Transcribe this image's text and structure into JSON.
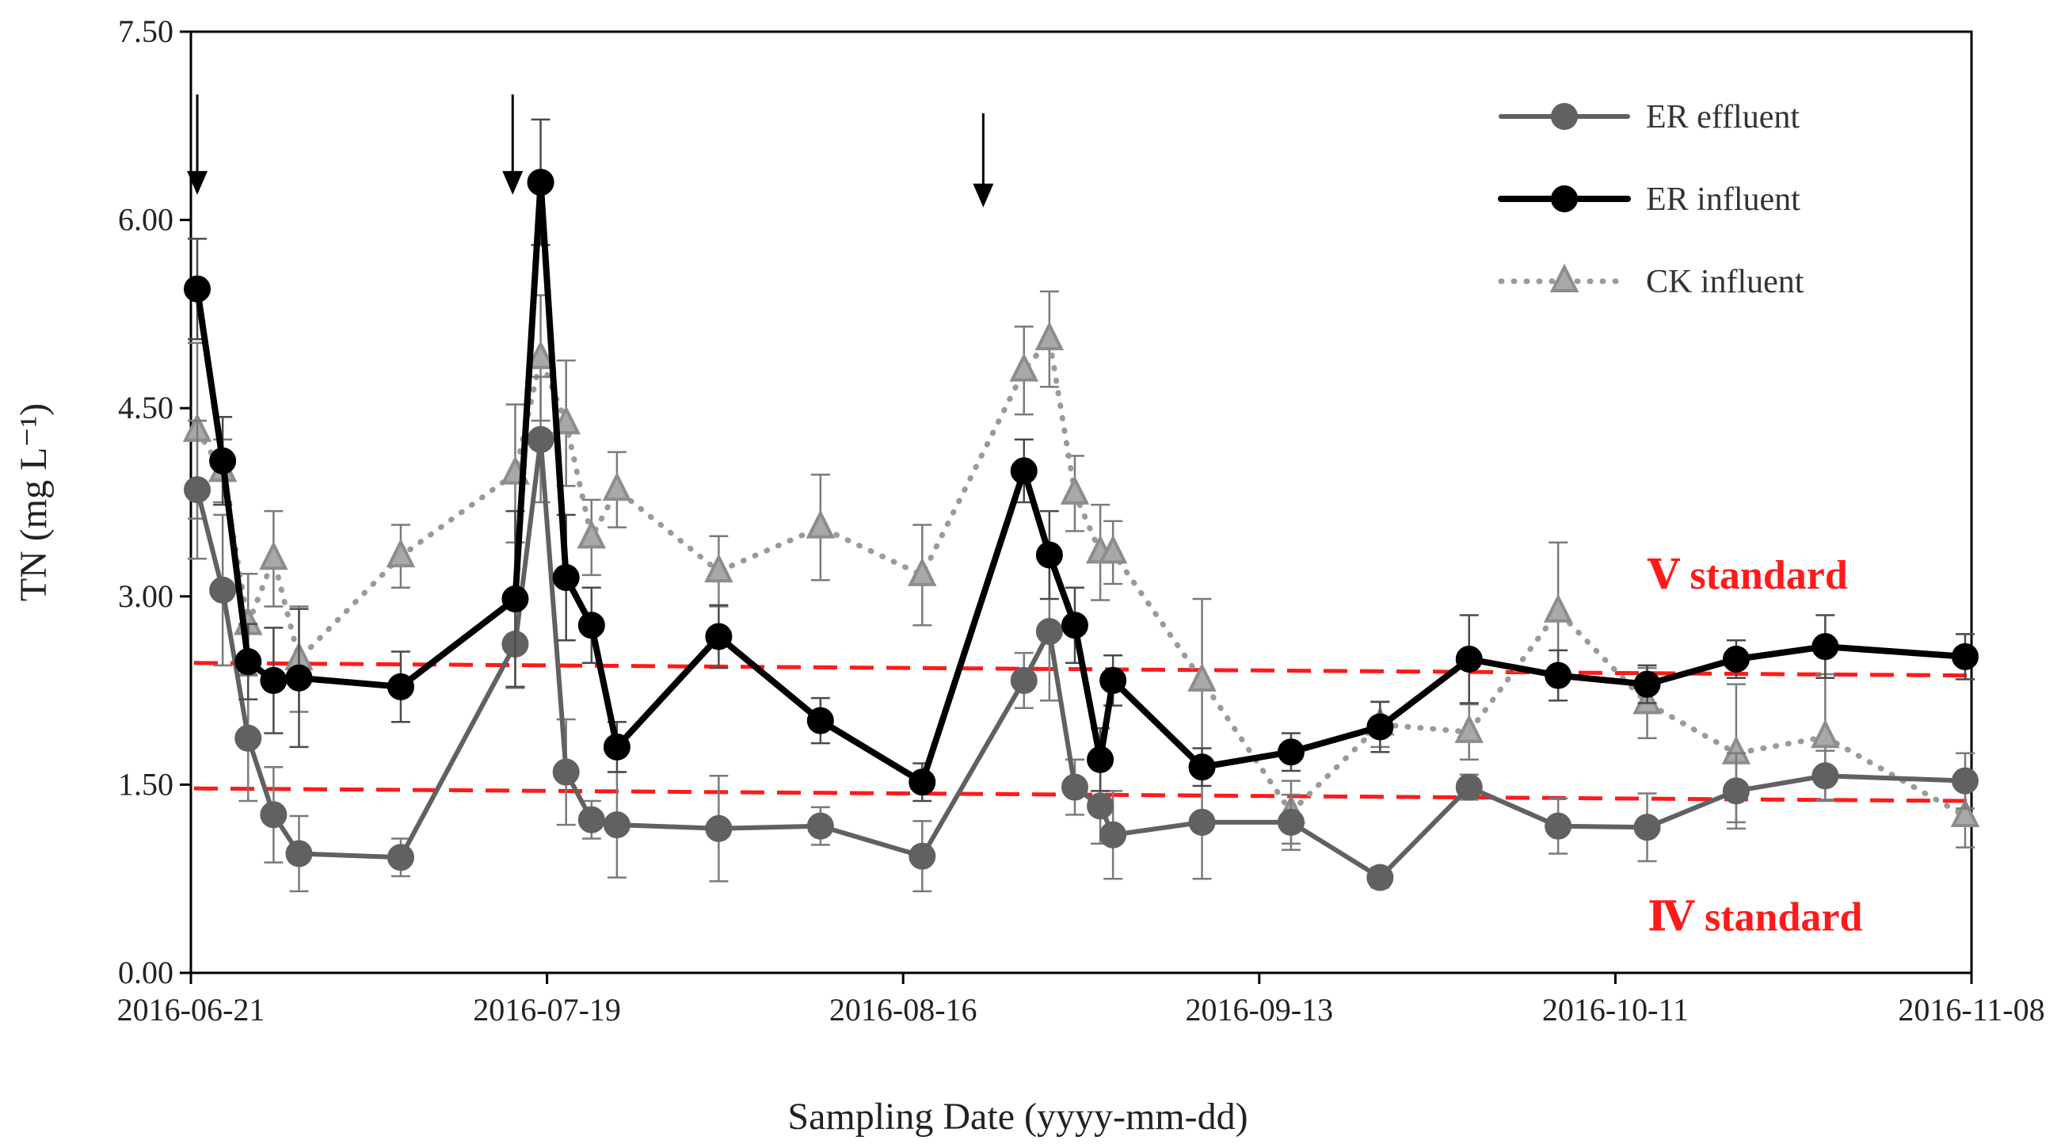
{
  "chart_data": {
    "type": "line",
    "xlabel": "Sampling Date (yyyy-mm-dd)",
    "ylabel": "TN (mg L⁻¹)",
    "ylim": [
      0,
      7.5
    ],
    "yticks": [
      "0.00",
      "1.50",
      "3.00",
      "4.50",
      "6.00",
      "7.50"
    ],
    "xlim_days": [
      0,
      140
    ],
    "xticks": [
      {
        "day": 0,
        "label": "2016-06-21"
      },
      {
        "day": 28,
        "label": "2016-07-19"
      },
      {
        "day": 56,
        "label": "2016-08-16"
      },
      {
        "day": 84,
        "label": "2016-09-13"
      },
      {
        "day": 112,
        "label": "2016-10-11"
      },
      {
        "day": 140,
        "label": "2016-11-08"
      }
    ],
    "series": [
      {
        "name": "ER effluent",
        "color": "#616161",
        "marker": "circle",
        "dash": "solid",
        "points": [
          [
            0.5,
            3.85,
            0.55
          ],
          [
            2.5,
            3.05,
            0.6
          ],
          [
            4.5,
            1.87,
            0.5
          ],
          [
            6.5,
            1.26,
            0.38
          ],
          [
            8.5,
            0.95,
            0.3
          ],
          [
            16.5,
            0.92,
            0.15
          ],
          [
            25.5,
            2.62,
            0.35
          ],
          [
            27.5,
            4.25,
            0.5
          ],
          [
            29.5,
            1.6,
            0.42
          ],
          [
            31.5,
            1.22,
            0.15
          ],
          [
            33.5,
            1.18,
            0.42
          ],
          [
            41.5,
            1.15,
            0.42
          ],
          [
            49.5,
            1.17,
            0.15
          ],
          [
            57.5,
            0.93,
            0.28
          ],
          [
            65.5,
            2.33,
            0.22
          ],
          [
            67.5,
            2.72,
            0.55
          ],
          [
            69.5,
            1.48,
            0.22
          ],
          [
            71.5,
            1.33,
            0.3
          ],
          [
            72.5,
            1.1,
            0.35
          ],
          [
            79.5,
            1.2,
            0.45
          ],
          [
            86.5,
            1.2,
            0.22
          ],
          [
            93.5,
            0.76,
            0.08
          ],
          [
            100.5,
            1.48,
            0.1
          ],
          [
            107.5,
            1.17,
            0.22
          ],
          [
            114.5,
            1.16,
            0.27
          ],
          [
            121.5,
            1.45,
            0.3
          ],
          [
            128.5,
            1.57,
            0.2
          ],
          [
            139.5,
            1.53,
            0.22
          ]
        ]
      },
      {
        "name": "ER influent",
        "color": "#000000",
        "marker": "circle",
        "dash": "solid",
        "points": [
          [
            0.5,
            5.45,
            0.4
          ],
          [
            2.5,
            4.08,
            0.35
          ],
          [
            4.5,
            2.48,
            0.3
          ],
          [
            6.5,
            2.33,
            0.42
          ],
          [
            8.5,
            2.35,
            0.55
          ],
          [
            16.5,
            2.28,
            0.28
          ],
          [
            25.5,
            2.98,
            0.7
          ],
          [
            27.5,
            6.3,
            0.5
          ],
          [
            29.5,
            3.15,
            0.5
          ],
          [
            31.5,
            2.77,
            0.3
          ],
          [
            33.5,
            1.8,
            0.2
          ],
          [
            41.5,
            2.68,
            0.25
          ],
          [
            49.5,
            2.01,
            0.18
          ],
          [
            57.5,
            1.52,
            0.15
          ],
          [
            65.5,
            4.0,
            0.25
          ],
          [
            67.5,
            3.33,
            0.35
          ],
          [
            69.5,
            2.77,
            0.3
          ],
          [
            71.5,
            1.7,
            0.25
          ],
          [
            72.5,
            2.33,
            0.2
          ],
          [
            79.5,
            1.64,
            0.15
          ],
          [
            86.5,
            1.76,
            0.15
          ],
          [
            93.5,
            1.96,
            0.2
          ],
          [
            100.5,
            2.5,
            0.35
          ],
          [
            107.5,
            2.37,
            0.2
          ],
          [
            114.5,
            2.3,
            0.15
          ],
          [
            121.5,
            2.5,
            0.15
          ],
          [
            128.5,
            2.6,
            0.25
          ],
          [
            139.5,
            2.52,
            0.18
          ]
        ]
      },
      {
        "name": "CK influent",
        "color": "#8c8c8c",
        "marker": "triangle",
        "dash": "dotted",
        "points": [
          [
            0.5,
            4.32,
            0.7
          ],
          [
            2.5,
            4.0,
            0.25
          ],
          [
            4.5,
            2.78,
            0.4
          ],
          [
            6.5,
            3.3,
            0.38
          ],
          [
            8.5,
            2.5,
            0.42
          ],
          [
            16.5,
            3.32,
            0.25
          ],
          [
            25.5,
            3.98,
            0.55
          ],
          [
            27.5,
            4.9,
            0.5
          ],
          [
            29.5,
            4.38,
            0.5
          ],
          [
            31.5,
            3.47,
            0.3
          ],
          [
            33.5,
            3.85,
            0.3
          ],
          [
            41.5,
            3.2,
            0.28
          ],
          [
            49.5,
            3.55,
            0.42
          ],
          [
            57.5,
            3.17,
            0.4
          ],
          [
            65.5,
            4.8,
            0.35
          ],
          [
            67.5,
            5.05,
            0.38
          ],
          [
            69.5,
            3.82,
            0.3
          ],
          [
            71.5,
            3.35,
            0.38
          ],
          [
            72.5,
            3.35,
            0.25
          ],
          [
            79.5,
            2.33,
            0.65
          ],
          [
            86.5,
            1.28,
            0.25
          ],
          [
            93.5,
            1.98,
            0.18
          ],
          [
            100.5,
            1.92,
            0.22
          ],
          [
            107.5,
            2.88,
            0.55
          ],
          [
            114.5,
            2.15,
            0.28
          ],
          [
            121.5,
            1.75,
            0.55
          ],
          [
            128.5,
            1.88,
            0.5
          ],
          [
            139.5,
            1.25,
            0.25
          ]
        ]
      }
    ],
    "standards": [
      {
        "label": "Ⅴ standard",
        "color": "#ff1a1a",
        "y_start": 2.47,
        "y_end": 2.37
      },
      {
        "label": "Ⅳ standard",
        "color": "#ff1a1a",
        "y_start": 1.47,
        "y_end": 1.37
      }
    ],
    "arrows": [
      {
        "day": 0.5,
        "y_top": 7.0,
        "y_tip": 6.2
      },
      {
        "day": 25.3,
        "y_top": 7.0,
        "y_tip": 6.2
      },
      {
        "day": 62.3,
        "y_top": 6.85,
        "y_tip": 6.1
      }
    ],
    "legend_position": "top-right"
  }
}
